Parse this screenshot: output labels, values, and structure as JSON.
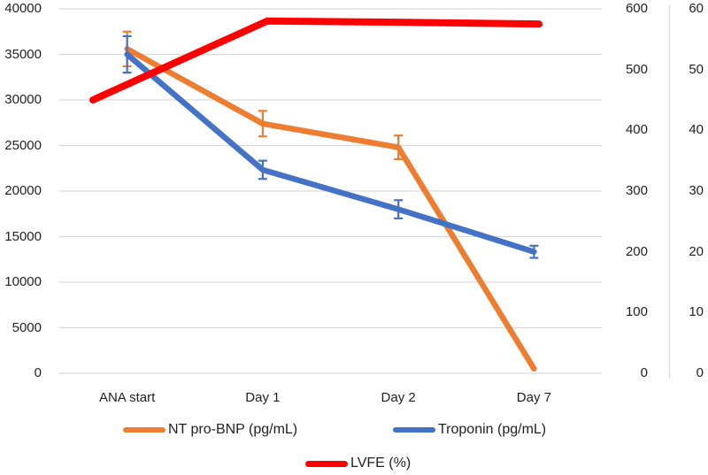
{
  "chart_data": {
    "type": "line",
    "categories": [
      "ANA start",
      "Day 1",
      "Day 2",
      "Day 7"
    ],
    "series": [
      {
        "name": "NT pro-BNP (pg/mL)",
        "color": "#ED7D31",
        "axis": "left",
        "values": [
          35600,
          27400,
          24800,
          500
        ],
        "errors": [
          1900,
          1400,
          1300,
          0
        ]
      },
      {
        "name": "Troponin (pg/mL)",
        "color": "#4472C4",
        "axis": "right1",
        "values": [
          525,
          335,
          270,
          200
        ],
        "errors": [
          30,
          15,
          15,
          10
        ]
      },
      {
        "name": "LVFE (%)",
        "color": "#FF0000",
        "axis": "right2",
        "values": [
          45,
          58,
          57.8,
          57.5
        ],
        "errors": [
          0,
          0,
          0,
          0
        ],
        "note": "thick overlay line extending slightly past first and last categories"
      }
    ],
    "axes": {
      "left": {
        "min": 0,
        "max": 40000,
        "step": 5000
      },
      "right1": {
        "min": 0,
        "max": 600,
        "step": 100
      },
      "right2": {
        "min": 0,
        "max": 60,
        "step": 10
      }
    },
    "grid": true,
    "legend_position": "bottom",
    "colors": {
      "gridline": "#D9D9D9",
      "axis_line": "#D9D9D9",
      "text": "#1f1f1f",
      "background": "#FFFFFF"
    }
  }
}
